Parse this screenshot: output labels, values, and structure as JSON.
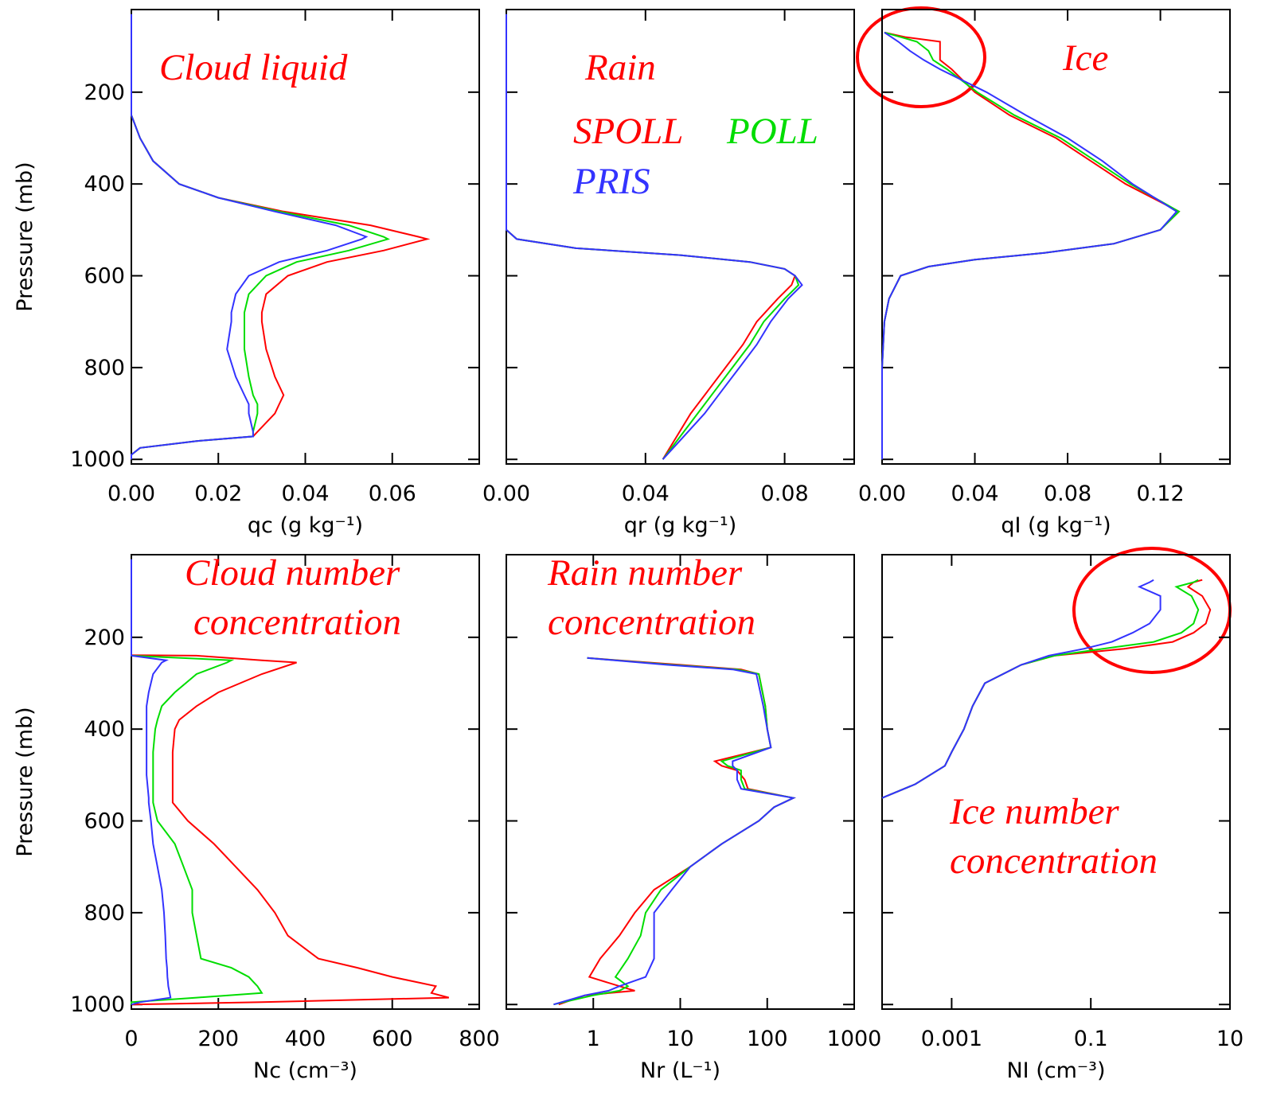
{
  "chart_data": [
    {
      "type": "line",
      "annotations": [
        "Cloud liquid"
      ],
      "xlabel": "qc (g kg⁻¹)",
      "ylabel": "Pressure (mb)",
      "ytick_labels": true,
      "xlim": [
        0,
        0.08
      ],
      "xticks": [
        {
          "value": 0,
          "label": "0.00"
        },
        {
          "value": 0.02,
          "label": "0.02"
        },
        {
          "value": 0.04,
          "label": "0.04"
        },
        {
          "value": 0.06,
          "label": "0.06"
        }
      ],
      "ylim": [
        1010,
        20
      ],
      "yticks": [
        200,
        400,
        600,
        800,
        1000
      ],
      "y": [
        30,
        100,
        200,
        250,
        300,
        350,
        400,
        430,
        460,
        490,
        515,
        520,
        545,
        570,
        600,
        640,
        680,
        700,
        760,
        820,
        860,
        880,
        900,
        940,
        950,
        960,
        975,
        990,
        1000
      ],
      "series": [
        {
          "color": "#ff0000",
          "values": [
            0,
            0,
            0,
            0,
            0.002,
            0.005,
            0.011,
            0.02,
            0.035,
            0.055,
            0.066,
            0.068,
            0.058,
            0.045,
            0.036,
            0.031,
            0.03,
            0.03,
            0.031,
            0.033,
            0.035,
            0.034,
            0.033,
            0.029,
            0.028,
            0.015,
            0.002,
            0,
            0
          ]
        },
        {
          "color": "#00dd00",
          "values": [
            0,
            0,
            0,
            0,
            0.002,
            0.005,
            0.011,
            0.02,
            0.034,
            0.05,
            0.058,
            0.059,
            0.05,
            0.038,
            0.031,
            0.027,
            0.026,
            0.026,
            0.026,
            0.027,
            0.028,
            0.029,
            0.029,
            0.028,
            0.028,
            0.015,
            0.002,
            0,
            0
          ]
        },
        {
          "color": "#3333ff",
          "values": [
            0,
            0,
            0,
            0,
            0.002,
            0.005,
            0.011,
            0.02,
            0.033,
            0.047,
            0.054,
            0.053,
            0.045,
            0.034,
            0.027,
            0.024,
            0.023,
            0.023,
            0.022,
            0.024,
            0.026,
            0.027,
            0.027,
            0.028,
            0.028,
            0.015,
            0.002,
            0,
            0
          ]
        }
      ]
    },
    {
      "type": "line",
      "annotations": [
        "Rain"
      ],
      "xlabel": "qr (g kg⁻¹)",
      "ytick_labels": false,
      "legend": true,
      "xlim": [
        0,
        0.1
      ],
      "xticks": [
        {
          "value": 0,
          "label": "0.00"
        },
        {
          "value": 0.04,
          "label": "0.04"
        },
        {
          "value": 0.08,
          "label": "0.08"
        }
      ],
      "ylim": [
        1010,
        20
      ],
      "yticks": [
        200,
        400,
        600,
        800,
        1000
      ],
      "y": [
        30,
        200,
        400,
        500,
        520,
        540,
        555,
        570,
        585,
        600,
        620,
        650,
        700,
        750,
        800,
        850,
        900,
        950,
        1000
      ],
      "series": [
        {
          "name": "SPOLL",
          "color": "#ff0000",
          "values": [
            0,
            0,
            0,
            0,
            0.003,
            0.02,
            0.05,
            0.07,
            0.08,
            0.083,
            0.082,
            0.078,
            0.072,
            0.068,
            0.063,
            0.058,
            0.053,
            0.049,
            0.045
          ]
        },
        {
          "name": "POLL",
          "color": "#00dd00",
          "values": [
            0,
            0,
            0,
            0,
            0.003,
            0.02,
            0.05,
            0.07,
            0.08,
            0.083,
            0.084,
            0.08,
            0.074,
            0.07,
            0.065,
            0.06,
            0.055,
            0.05,
            0.045
          ]
        },
        {
          "name": "PRIS",
          "color": "#3333ff",
          "values": [
            0,
            0,
            0,
            0,
            0.003,
            0.02,
            0.05,
            0.07,
            0.08,
            0.083,
            0.085,
            0.081,
            0.076,
            0.072,
            0.067,
            0.062,
            0.057,
            0.051,
            0.045
          ]
        }
      ]
    },
    {
      "type": "line",
      "annotations": [
        "Ice"
      ],
      "xlabel": "qI (g kg⁻¹)",
      "ytick_labels": false,
      "xlim": [
        0,
        0.15
      ],
      "xticks": [
        {
          "value": 0,
          "label": "0.00"
        },
        {
          "value": 0.04,
          "label": "0.04"
        },
        {
          "value": 0.08,
          "label": "0.08"
        },
        {
          "value": 0.12,
          "label": "0.12"
        }
      ],
      "ylim": [
        1010,
        20
      ],
      "yticks": [
        200,
        400,
        600,
        800,
        1000
      ],
      "y": [
        70,
        80,
        90,
        110,
        130,
        150,
        200,
        250,
        300,
        350,
        400,
        460,
        500,
        530,
        550,
        565,
        580,
        600,
        650,
        700,
        800,
        1000
      ],
      "series": [
        {
          "color": "#ff0000",
          "values": [
            0.001,
            0.01,
            0.025,
            0.025,
            0.025,
            0.03,
            0.04,
            0.055,
            0.075,
            0.09,
            0.105,
            0.128,
            0.12,
            0.1,
            0.07,
            0.04,
            0.02,
            0.008,
            0.003,
            0.001,
            0,
            0
          ]
        },
        {
          "color": "#00dd00",
          "values": [
            0.001,
            0.008,
            0.015,
            0.02,
            0.022,
            0.028,
            0.041,
            0.057,
            0.077,
            0.092,
            0.107,
            0.128,
            0.12,
            0.1,
            0.07,
            0.04,
            0.02,
            0.008,
            0.003,
            0.001,
            0,
            0
          ]
        },
        {
          "color": "#3333ff",
          "values": [
            0.001,
            0.004,
            0.007,
            0.012,
            0.018,
            0.025,
            0.045,
            0.062,
            0.08,
            0.095,
            0.108,
            0.127,
            0.12,
            0.1,
            0.07,
            0.04,
            0.02,
            0.008,
            0.003,
            0.001,
            0,
            0
          ]
        }
      ]
    },
    {
      "type": "line",
      "annotations": [
        "Cloud number",
        "concentration"
      ],
      "xlabel": "Nc (cm⁻³)",
      "ylabel": "Pressure (mb)",
      "ytick_labels": true,
      "xlim": [
        0,
        800
      ],
      "xticks": [
        0,
        200,
        400,
        600,
        800
      ],
      "ylim": [
        1010,
        20
      ],
      "yticks": [
        200,
        400,
        600,
        800,
        1000
      ],
      "y": [
        30,
        239,
        240,
        250,
        255,
        280,
        320,
        350,
        380,
        400,
        450,
        500,
        550,
        560,
        600,
        650,
        700,
        750,
        800,
        850,
        900,
        920,
        940,
        950,
        960,
        975,
        985,
        995,
        1000
      ],
      "series": [
        {
          "color": "#ff0000",
          "values": [
            0,
            0,
            150,
            300,
            380,
            300,
            200,
            150,
            110,
            100,
            95,
            95,
            95,
            95,
            130,
            190,
            240,
            290,
            330,
            360,
            430,
            520,
            600,
            650,
            700,
            690,
            730,
            300,
            0
          ]
        },
        {
          "color": "#00dd00",
          "values": [
            0,
            0,
            0,
            230,
            220,
            150,
            100,
            70,
            60,
            55,
            50,
            50,
            50,
            50,
            60,
            100,
            120,
            140,
            140,
            150,
            160,
            230,
            270,
            280,
            290,
            300,
            150,
            0,
            0
          ]
        },
        {
          "color": "#3333ff",
          "values": [
            0,
            0,
            0,
            80,
            70,
            50,
            40,
            35,
            35,
            35,
            35,
            35,
            40,
            40,
            45,
            50,
            60,
            70,
            75,
            78,
            80,
            82,
            83,
            84,
            85,
            88,
            90,
            20,
            0
          ]
        }
      ]
    },
    {
      "type": "line",
      "annotations": [
        "Rain number",
        "concentration"
      ],
      "xlabel": "Nr (L⁻¹)",
      "ytick_labels": false,
      "xlog": true,
      "xlim": [
        0.1,
        1000
      ],
      "xticks": [
        1,
        10,
        100,
        1000
      ],
      "ylim": [
        1010,
        20
      ],
      "yticks": [
        200,
        400,
        600,
        800,
        1000
      ],
      "y": [
        245,
        260,
        270,
        280,
        350,
        400,
        440,
        470,
        480,
        490,
        510,
        530,
        550,
        570,
        600,
        650,
        700,
        750,
        800,
        850,
        900,
        940,
        960,
        970,
        980,
        1000
      ],
      "series": [
        {
          "color": "#ff0000",
          "values": [
            0.85,
            10,
            50,
            80,
            95,
            100,
            110,
            25,
            30,
            45,
            55,
            60,
            200,
            120,
            80,
            30,
            13,
            5,
            3,
            2,
            1.2,
            0.9,
            2,
            3,
            0.8,
            0.4
          ]
        },
        {
          "color": "#00dd00",
          "values": [
            0.85,
            8,
            45,
            80,
            95,
            100,
            110,
            30,
            35,
            50,
            50,
            55,
            200,
            120,
            80,
            30,
            13,
            6,
            4,
            3.5,
            2.5,
            1.8,
            2.5,
            2,
            1,
            0.35
          ]
        },
        {
          "color": "#3333ff",
          "values": [
            0.85,
            7,
            40,
            75,
            90,
            100,
            110,
            40,
            40,
            45,
            45,
            50,
            200,
            120,
            80,
            30,
            13,
            8,
            5,
            5,
            5,
            4,
            2,
            1.5,
            0.8,
            0.35
          ]
        }
      ]
    },
    {
      "type": "line",
      "annotations": [
        "Ice number",
        "concentration"
      ],
      "xlabel": "NI (cm⁻³)",
      "ytick_labels": false,
      "xlog": true,
      "xlim": [
        0.0001,
        10
      ],
      "xticks": [
        0.001,
        0.1,
        10
      ],
      "ylim": [
        1010,
        20
      ],
      "yticks": [
        200,
        400,
        600,
        800,
        1000
      ],
      "y": [
        75,
        80,
        90,
        110,
        140,
        170,
        190,
        210,
        225,
        240,
        260,
        300,
        350,
        400,
        450,
        480,
        520,
        550
      ],
      "series": [
        {
          "color": "#ff0000",
          "values": [
            4,
            3,
            2.5,
            4,
            5.2,
            4.5,
            3,
            1.5,
            0.3,
            0.03,
            0.01,
            0.003,
            0.002,
            0.0015,
            0.001,
            0.0008,
            0.0003,
            0.0001
          ]
        },
        {
          "color": "#00dd00",
          "values": [
            3.5,
            3,
            1.7,
            2.8,
            3.5,
            3,
            2,
            0.8,
            0.15,
            0.03,
            0.01,
            0.003,
            0.002,
            0.0015,
            0.001,
            0.0008,
            0.0003,
            0.0001
          ]
        },
        {
          "color": "#3333ff",
          "values": [
            0.8,
            0.7,
            0.5,
            1,
            1,
            0.7,
            0.4,
            0.2,
            0.08,
            0.025,
            0.01,
            0.003,
            0.002,
            0.0015,
            0.001,
            0.0008,
            0.0003,
            0.0001
          ]
        }
      ]
    }
  ]
}
